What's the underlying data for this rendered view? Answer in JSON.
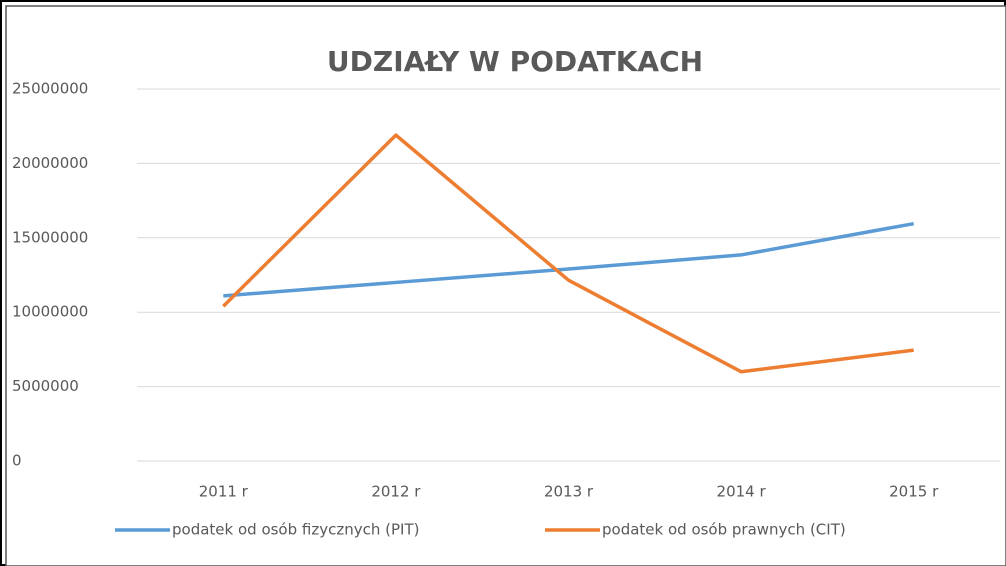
{
  "chart_data": {
    "type": "line",
    "title": "UDZIAŁY  W  PODATKACH",
    "categories": [
      "2011 r",
      "2012 r",
      "2013 r",
      "2014 r",
      "2015 r"
    ],
    "series": [
      {
        "name": "podatek od osób fizycznych (PIT)",
        "color": "#5b9bd5",
        "values": [
          11100000,
          12000000,
          12900000,
          13850000,
          15950000
        ]
      },
      {
        "name": "podatek od osób prawnych (CIT)",
        "color": "#ed7d31",
        "values": [
          10400000,
          21900000,
          12150000,
          6000000,
          7450000
        ]
      }
    ],
    "ylim": [
      0,
      25000000
    ],
    "yticks": [
      0,
      5000000,
      10000000,
      15000000,
      20000000,
      25000000
    ],
    "grid": true,
    "legend": "bottom"
  }
}
